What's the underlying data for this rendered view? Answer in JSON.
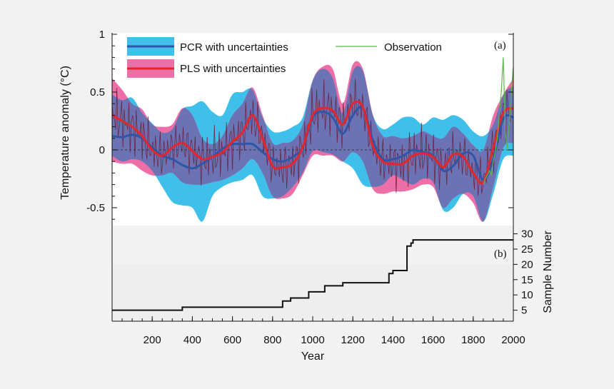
{
  "chart_data": [
    {
      "panel_label": "(a)",
      "type": "line",
      "xlabel": "Year",
      "ylabel": "Temperature anomaly (°C)",
      "xlim": [
        0,
        2000
      ],
      "ylim": [
        -0.7,
        1.0
      ],
      "x_ticks": [
        200,
        400,
        600,
        800,
        1000,
        1200,
        1400,
        1600,
        1800,
        2000
      ],
      "y_ticks": [
        {
          "v": 1,
          "label": "1"
        },
        {
          "v": 0.5,
          "label": "0.5"
        },
        {
          "v": 0,
          "label": "0"
        },
        {
          "v": -0.5,
          "label": "-0.5"
        }
      ],
      "zero_line": true,
      "legend": {
        "pcr": "PCR with uncertainties",
        "pls": "PLS with uncertainties",
        "obs": "Observation"
      },
      "colors": {
        "pcr_band": "#3fc0ea",
        "pls_band": "#ee6fa8",
        "overlap": "#6b73b4",
        "pcr_line": "#2f56a6",
        "pls_line": "#e3262d",
        "obs_line": "#5cb848",
        "annual_line": "#6e1f3a"
      },
      "series": [
        {
          "name": "PCR with uncertainties",
          "x": [
            0,
            50,
            100,
            150,
            200,
            250,
            300,
            350,
            400,
            450,
            500,
            550,
            600,
            650,
            700,
            750,
            800,
            850,
            900,
            950,
            1000,
            1050,
            1100,
            1150,
            1200,
            1250,
            1300,
            1350,
            1400,
            1450,
            1500,
            1550,
            1600,
            1650,
            1700,
            1750,
            1800,
            1850,
            1900,
            1950,
            2000
          ],
          "values": [
            0.12,
            0.11,
            0.13,
            0.1,
            0.02,
            -0.05,
            -0.08,
            -0.13,
            -0.16,
            -0.12,
            -0.06,
            0.01,
            0.05,
            0.05,
            0.05,
            -0.02,
            -0.08,
            -0.1,
            -0.06,
            0.02,
            0.28,
            0.33,
            0.28,
            0.14,
            0.3,
            0.36,
            0.08,
            -0.08,
            -0.08,
            -0.05,
            0.0,
            -0.02,
            -0.05,
            -0.18,
            -0.14,
            -0.03,
            -0.05,
            -0.26,
            -0.08,
            0.27,
            0.28
          ],
          "lower": [
            -0.05,
            -0.1,
            -0.08,
            -0.1,
            -0.18,
            -0.32,
            -0.45,
            -0.48,
            -0.5,
            -0.62,
            -0.4,
            -0.32,
            -0.28,
            -0.26,
            -0.22,
            -0.4,
            -0.42,
            -0.4,
            -0.32,
            -0.2,
            -0.01,
            -0.02,
            -0.04,
            -0.1,
            -0.16,
            -0.3,
            -0.32,
            -0.3,
            -0.22,
            -0.26,
            -0.3,
            -0.25,
            -0.28,
            -0.52,
            -0.5,
            -0.38,
            -0.4,
            -0.62,
            -0.38,
            -0.08,
            -0.05
          ],
          "upper": [
            0.48,
            0.43,
            0.45,
            0.32,
            0.23,
            0.15,
            0.18,
            0.35,
            0.38,
            0.42,
            0.33,
            0.3,
            0.48,
            0.5,
            0.52,
            0.28,
            0.16,
            0.16,
            0.2,
            0.28,
            0.6,
            0.7,
            0.62,
            0.32,
            0.68,
            0.68,
            0.3,
            0.18,
            0.22,
            0.28,
            0.28,
            0.22,
            0.28,
            0.26,
            0.3,
            0.26,
            0.16,
            0.12,
            0.22,
            0.48,
            0.55
          ]
        },
        {
          "name": "PLS with uncertainties",
          "x": [
            0,
            50,
            100,
            150,
            200,
            250,
            300,
            350,
            400,
            450,
            500,
            550,
            600,
            650,
            700,
            750,
            800,
            850,
            900,
            950,
            1000,
            1050,
            1100,
            1150,
            1200,
            1250,
            1300,
            1350,
            1400,
            1450,
            1500,
            1550,
            1600,
            1650,
            1700,
            1750,
            1800,
            1850,
            1900,
            1950,
            2000
          ],
          "values": [
            0.3,
            0.25,
            0.2,
            0.12,
            0.0,
            -0.05,
            0.02,
            0.06,
            -0.01,
            -0.08,
            -0.06,
            -0.02,
            0.07,
            0.15,
            0.3,
            0.1,
            -0.14,
            -0.15,
            -0.12,
            0.02,
            0.3,
            0.36,
            0.34,
            0.22,
            0.4,
            0.37,
            0.03,
            -0.1,
            -0.12,
            -0.12,
            -0.05,
            -0.03,
            -0.06,
            -0.15,
            -0.04,
            -0.06,
            -0.2,
            -0.28,
            0.02,
            0.32,
            0.36
          ],
          "lower": [
            -0.1,
            -0.12,
            -0.12,
            -0.18,
            -0.22,
            -0.22,
            -0.2,
            -0.28,
            -0.3,
            -0.3,
            -0.28,
            -0.26,
            -0.22,
            -0.16,
            -0.08,
            -0.2,
            -0.4,
            -0.42,
            -0.38,
            -0.22,
            -0.05,
            -0.05,
            -0.05,
            -0.1,
            -0.02,
            -0.1,
            -0.34,
            -0.38,
            -0.36,
            -0.36,
            -0.34,
            -0.3,
            -0.32,
            -0.5,
            -0.42,
            -0.38,
            -0.46,
            -0.62,
            -0.32,
            0.02,
            0.06
          ],
          "upper": [
            0.62,
            0.52,
            0.4,
            0.35,
            0.22,
            0.2,
            0.22,
            0.36,
            0.3,
            0.1,
            0.05,
            0.12,
            0.3,
            0.4,
            0.54,
            0.3,
            0.06,
            0.06,
            0.08,
            0.22,
            0.6,
            0.72,
            0.7,
            0.4,
            0.74,
            0.7,
            0.3,
            0.12,
            0.12,
            0.1,
            0.12,
            0.16,
            0.12,
            0.1,
            0.2,
            0.14,
            0.04,
            0.0,
            0.3,
            0.48,
            0.62
          ]
        },
        {
          "name": "Observation",
          "x": [
            1850,
            1860,
            1870,
            1880,
            1890,
            1900,
            1910,
            1920,
            1930,
            1940,
            1950,
            1960,
            1970,
            1980,
            1990,
            2000
          ],
          "values": [
            -0.3,
            -0.25,
            -0.22,
            -0.18,
            -0.22,
            -0.1,
            -0.02,
            0.1,
            0.3,
            0.5,
            0.8,
            0.15,
            0.0,
            0.25,
            0.5,
            0.72
          ]
        }
      ]
    },
    {
      "panel_label": "(b)",
      "type": "line",
      "xlabel": "Year",
      "ylabel": "Sample Number",
      "xlim": [
        0,
        2000
      ],
      "ylim": [
        3,
        30
      ],
      "y_ticks": [
        5,
        10,
        15,
        20,
        25,
        30
      ],
      "series": [
        {
          "step_x": [
            0,
            350,
            850,
            890,
            980,
            1060,
            1150,
            1380,
            1400,
            1470,
            1490,
            1500,
            2000
          ],
          "values": [
            5,
            6,
            8,
            9,
            11,
            13,
            14,
            17,
            18,
            26,
            27,
            28,
            28
          ]
        }
      ]
    }
  ]
}
